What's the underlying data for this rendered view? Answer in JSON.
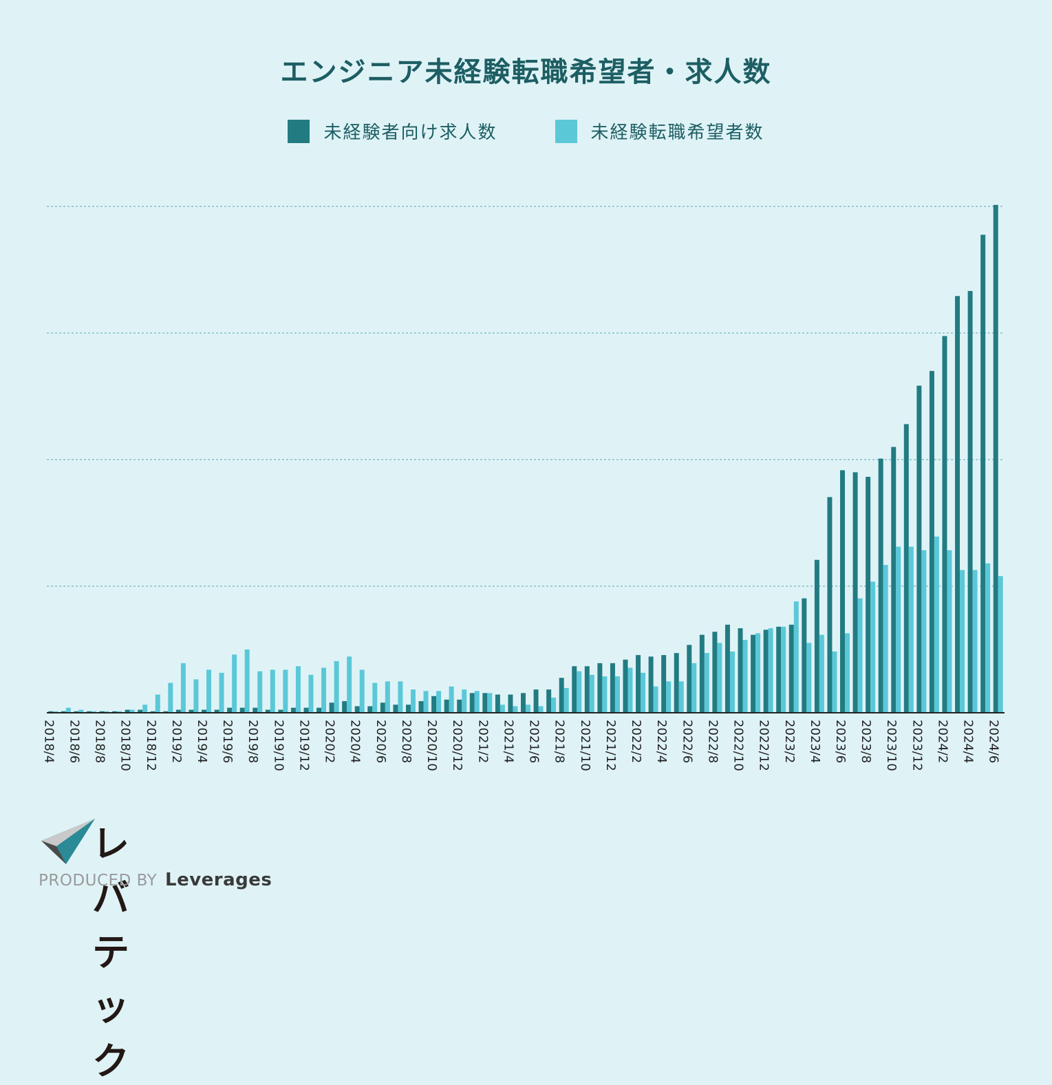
{
  "chart_data": {
    "type": "bar",
    "title": "エンジニア未経験転職希望者・求人数",
    "colors": {
      "jobs": "#237b82",
      "seekers": "#5bc8d8"
    },
    "categories": [
      "2018/4",
      "2018/5",
      "2018/6",
      "2018/7",
      "2018/8",
      "2018/9",
      "2018/10",
      "2018/11",
      "2018/12",
      "2019/1",
      "2019/2",
      "2019/3",
      "2019/4",
      "2019/5",
      "2019/6",
      "2019/7",
      "2019/8",
      "2019/9",
      "2019/10",
      "2019/11",
      "2019/12",
      "2020/1",
      "2020/2",
      "2020/3",
      "2020/4",
      "2020/5",
      "2020/6",
      "2020/7",
      "2020/8",
      "2020/9",
      "2020/10",
      "2020/11",
      "2020/12",
      "2021/1",
      "2021/2",
      "2021/3",
      "2021/4",
      "2021/5",
      "2021/6",
      "2021/7",
      "2021/8",
      "2021/9",
      "2021/10",
      "2021/11",
      "2021/12",
      "2022/1",
      "2022/2",
      "2022/3",
      "2022/4",
      "2022/5",
      "2022/6",
      "2022/7",
      "2022/8",
      "2022/9",
      "2022/10",
      "2022/11",
      "2022/12",
      "2023/1",
      "2023/2",
      "2023/3",
      "2023/4",
      "2023/5",
      "2023/6",
      "2023/7",
      "2023/8",
      "2023/9",
      "2023/10",
      "2023/11",
      "2023/12",
      "2024/1",
      "2024/2",
      "2024/3",
      "2024/4",
      "2024/5",
      "2024/6"
    ],
    "tick_labels": [
      "2018/4",
      "2018/6",
      "2018/8",
      "2018/10",
      "2018/12",
      "2019/2",
      "2019/4",
      "2019/6",
      "2019/8",
      "2019/10",
      "2019/12",
      "2020/2",
      "2020/4",
      "2020/6",
      "2020/8",
      "2020/10",
      "2020/12",
      "2021/2",
      "2021/4",
      "2021/6",
      "2021/8",
      "2021/10",
      "2021/12",
      "2022/2",
      "2022/4",
      "2022/6",
      "2022/8",
      "2022/10",
      "2022/12",
      "2023/2",
      "2023/4",
      "2023/6",
      "2023/8",
      "2023/10",
      "2023/12",
      "2024/2",
      "2024/4",
      "2024/6"
    ],
    "ylim": [
      0,
      100
    ],
    "grid": true,
    "y_tick_labels_shown": false,
    "series": [
      {
        "name": "未経験者向け求人数",
        "key": "jobs",
        "values": [
          0.3,
          0.3,
          0.3,
          0.3,
          0.3,
          0.3,
          0.6,
          0.6,
          0.3,
          0.3,
          0.6,
          0.6,
          0.6,
          0.6,
          1.0,
          1.0,
          1.0,
          0.6,
          0.6,
          1.0,
          1.0,
          1.0,
          2.0,
          2.3,
          1.3,
          1.3,
          2.0,
          1.6,
          1.6,
          2.3,
          3.3,
          2.6,
          2.6,
          3.9,
          3.9,
          3.6,
          3.6,
          3.9,
          4.6,
          4.6,
          6.9,
          9.2,
          9.2,
          9.8,
          9.8,
          10.5,
          11.4,
          11.1,
          11.4,
          11.8,
          13.4,
          15.4,
          16.0,
          17.4,
          16.7,
          15.4,
          16.4,
          17.0,
          17.4,
          22.6,
          30.2,
          42.6,
          47.9,
          47.5,
          46.6,
          50.2,
          52.5,
          57.0,
          64.6,
          67.5,
          74.4,
          82.3,
          83.3,
          94.4,
          100.3
        ]
      },
      {
        "name": "未経験転職希望者数",
        "key": "seekers",
        "values": [
          0.3,
          1.0,
          0.6,
          0.3,
          0.3,
          0.3,
          0.6,
          1.6,
          3.6,
          5.9,
          9.8,
          6.6,
          8.5,
          7.9,
          11.5,
          12.5,
          8.2,
          8.5,
          8.5,
          9.2,
          7.5,
          8.9,
          10.2,
          11.1,
          8.5,
          5.9,
          6.2,
          6.2,
          4.6,
          4.3,
          4.3,
          5.2,
          4.6,
          4.3,
          3.9,
          1.6,
          1.3,
          1.6,
          1.3,
          3.0,
          4.9,
          8.2,
          7.5,
          7.2,
          7.2,
          8.9,
          7.9,
          5.2,
          6.2,
          6.2,
          9.8,
          11.8,
          13.8,
          12.1,
          14.4,
          15.7,
          16.7,
          17.0,
          22.0,
          13.8,
          15.4,
          12.1,
          15.7,
          22.6,
          25.9,
          29.2,
          32.8,
          32.8,
          32.1,
          34.8,
          32.1,
          28.2,
          28.2,
          29.5,
          27.0
        ]
      }
    ]
  },
  "legend": [
    {
      "label": "未経験者向け求人数",
      "color": "#237b82"
    },
    {
      "label": "未経験転職希望者数",
      "color": "#5bc8d8"
    }
  ],
  "logo": {
    "wordmark": "レバテック",
    "produced_by": "PRODUCED BY",
    "brand": "Leverages"
  }
}
